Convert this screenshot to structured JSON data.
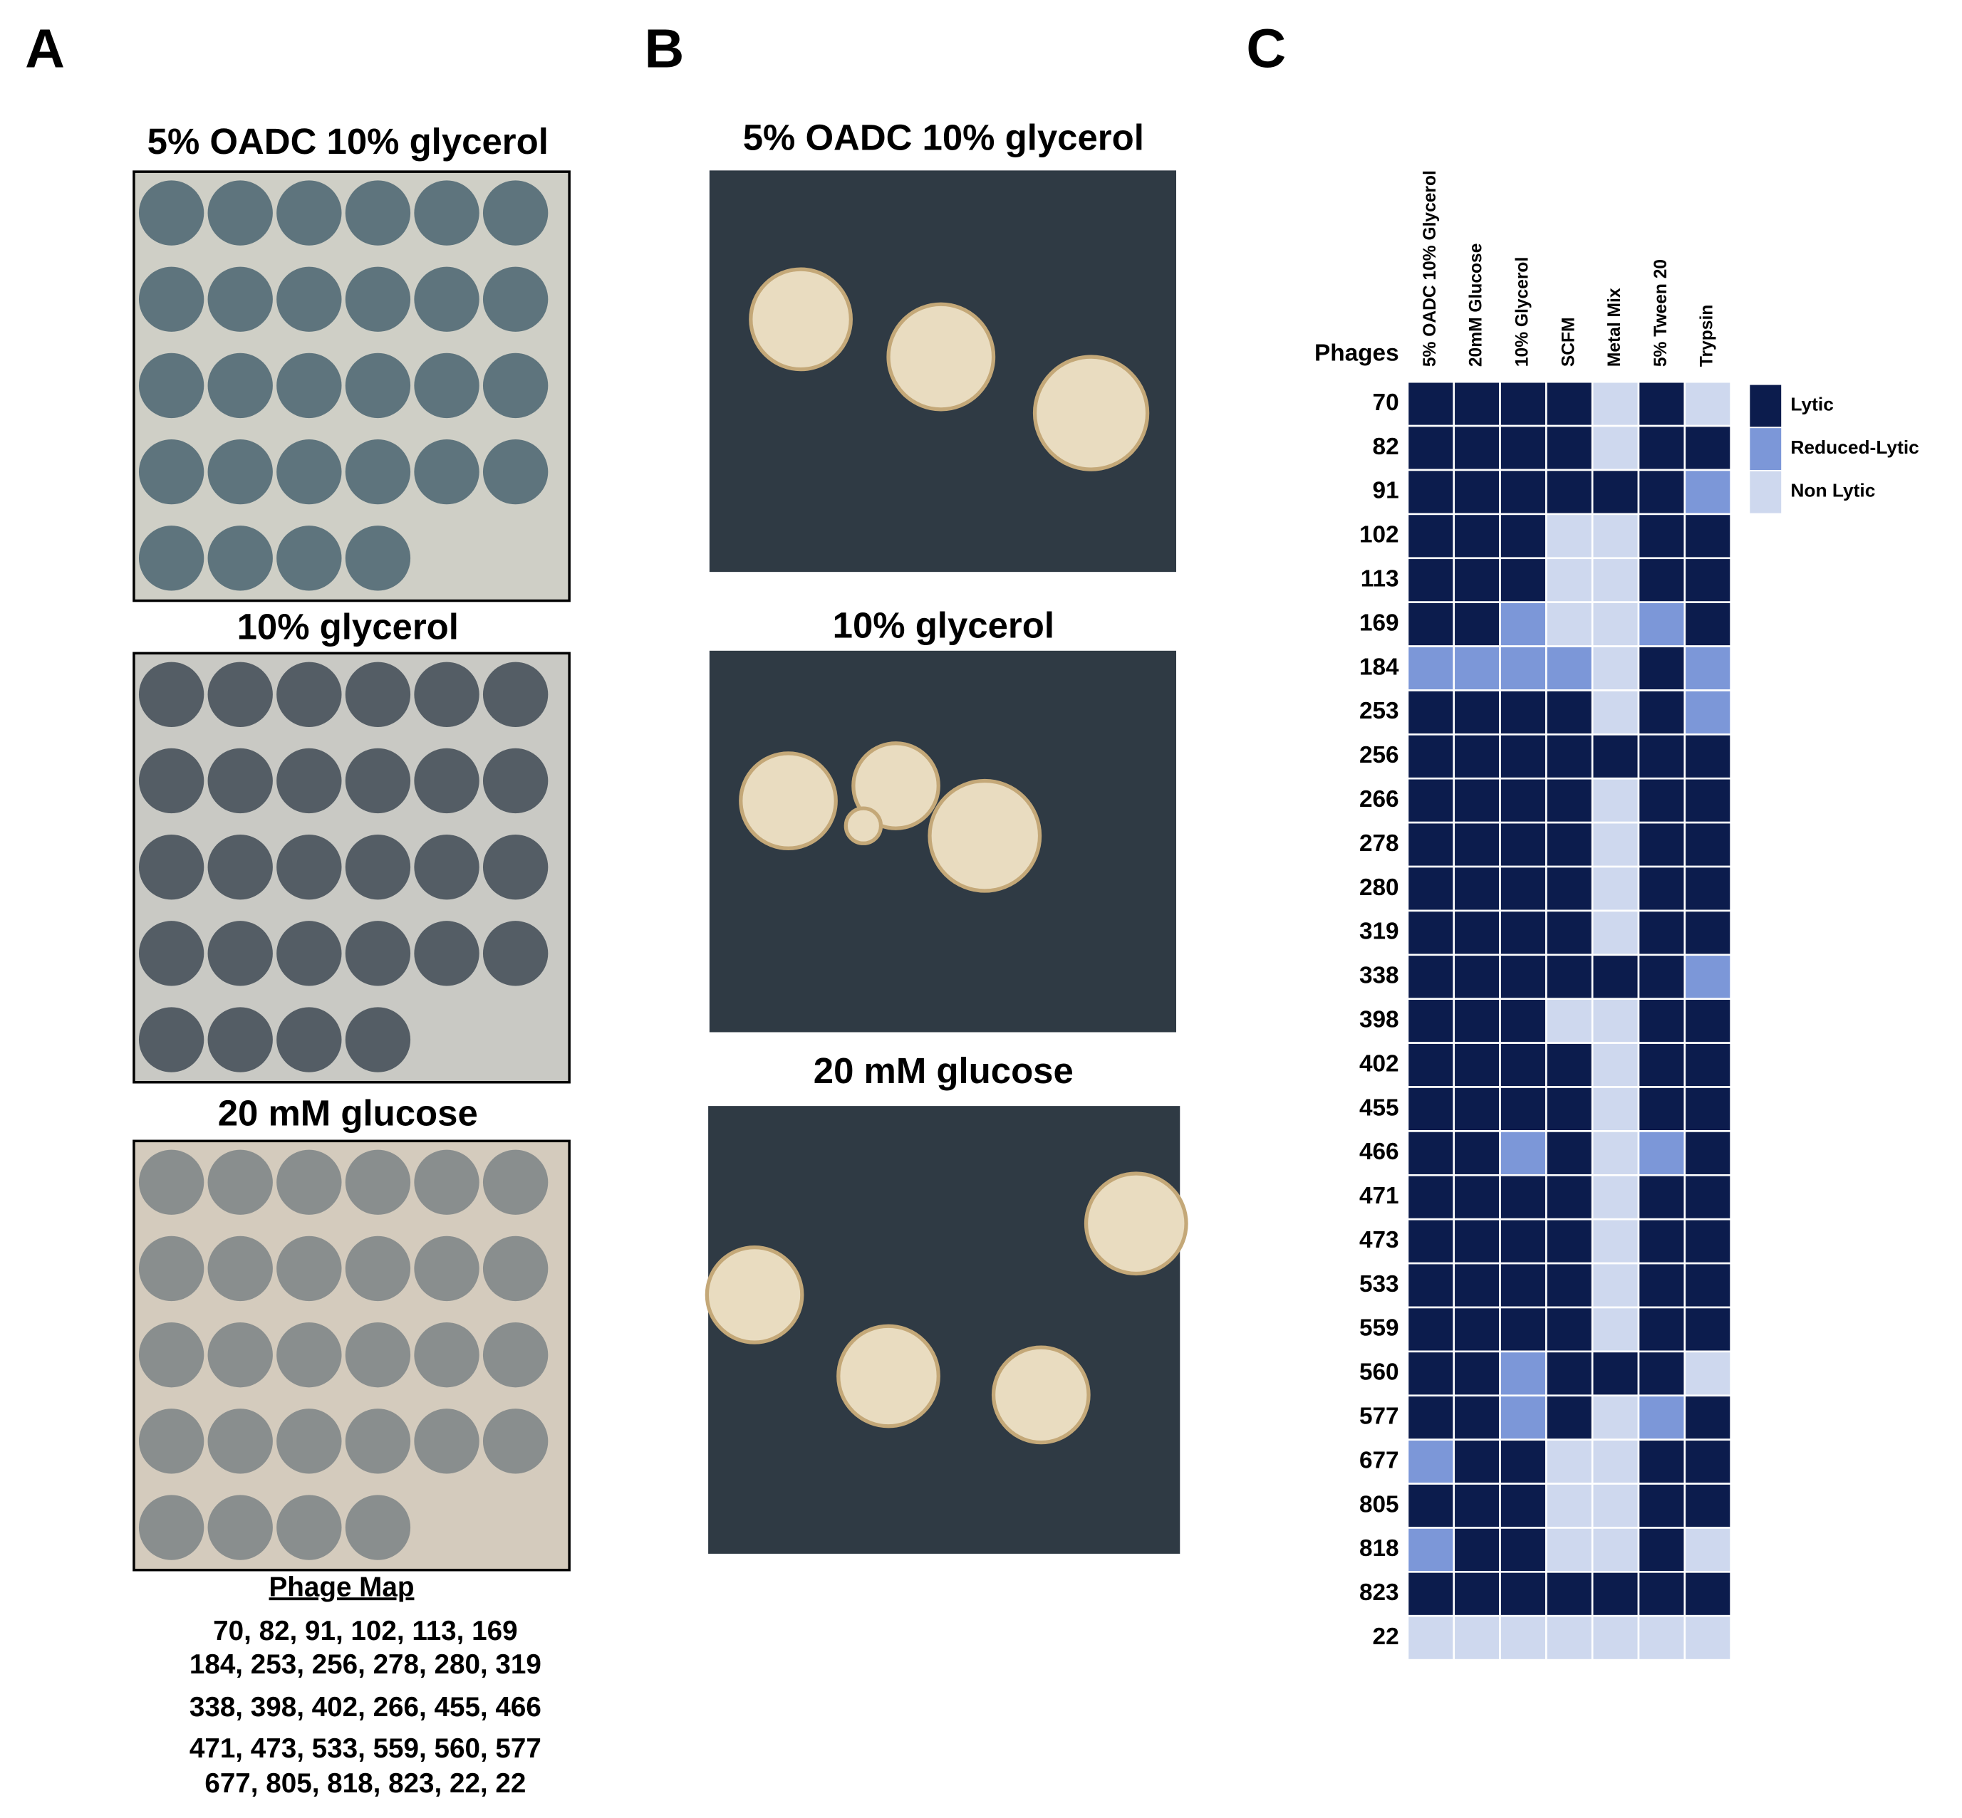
{
  "panel_a": {
    "letter": "A",
    "plates": [
      {
        "title": "5% OADC 10% glycerol"
      },
      {
        "title": "10% glycerol"
      },
      {
        "title": "20 mM glucose"
      }
    ],
    "map_title": "Phage Map",
    "map_lines": [
      "70,  82, 91, 102, 113, 169",
      "184, 253, 256, 278, 280, 319",
      "338, 398, 402, 266, 455, 466",
      "471, 473, 533, 559, 560, 577",
      "677, 805, 818, 823, 22, 22"
    ]
  },
  "panel_b": {
    "letter": "B",
    "photos": [
      {
        "title": "5% OADC 10% glycerol"
      },
      {
        "title": "10% glycerol"
      },
      {
        "title": "20 mM glucose"
      }
    ]
  },
  "panel_c": {
    "letter": "C",
    "row_header": "Phages",
    "columns": [
      "5% OADC 10% Glycerol",
      "20mM Glucose",
      "10% Glycerol",
      "SCFM",
      "Metal Mix",
      "5% Tween 20",
      "Trypsin"
    ],
    "legend": [
      {
        "label": "Lytic",
        "color": "#0c1c4d"
      },
      {
        "label": "Reduced-Lytic",
        "color": "#7c97d8"
      },
      {
        "label": "Non Lytic",
        "color": "#ced8ee"
      }
    ],
    "rows": [
      "70",
      "82",
      "91",
      "102",
      "113",
      "169",
      "184",
      "253",
      "256",
      "266",
      "278",
      "280",
      "319",
      "338",
      "398",
      "402",
      "455",
      "466",
      "471",
      "473",
      "533",
      "559",
      "560",
      "577",
      "677",
      "805",
      "818",
      "823",
      "22"
    ],
    "cells": [
      [
        "Lytic",
        "Lytic",
        "Lytic",
        "Lytic",
        "Non Lytic",
        "Lytic",
        "Non Lytic"
      ],
      [
        "Lytic",
        "Lytic",
        "Lytic",
        "Lytic",
        "Non Lytic",
        "Lytic",
        "Lytic"
      ],
      [
        "Lytic",
        "Lytic",
        "Lytic",
        "Lytic",
        "Lytic",
        "Lytic",
        "Reduced-Lytic"
      ],
      [
        "Lytic",
        "Lytic",
        "Lytic",
        "Non Lytic",
        "Non Lytic",
        "Lytic",
        "Lytic"
      ],
      [
        "Lytic",
        "Lytic",
        "Lytic",
        "Non Lytic",
        "Non Lytic",
        "Lytic",
        "Lytic"
      ],
      [
        "Lytic",
        "Lytic",
        "Reduced-Lytic",
        "Non Lytic",
        "Non Lytic",
        "Reduced-Lytic",
        "Lytic"
      ],
      [
        "Reduced-Lytic",
        "Reduced-Lytic",
        "Reduced-Lytic",
        "Reduced-Lytic",
        "Non Lytic",
        "Lytic",
        "Reduced-Lytic"
      ],
      [
        "Lytic",
        "Lytic",
        "Lytic",
        "Lytic",
        "Non Lytic",
        "Lytic",
        "Reduced-Lytic"
      ],
      [
        "Lytic",
        "Lytic",
        "Lytic",
        "Lytic",
        "Lytic",
        "Lytic",
        "Lytic"
      ],
      [
        "Lytic",
        "Lytic",
        "Lytic",
        "Lytic",
        "Non Lytic",
        "Lytic",
        "Lytic"
      ],
      [
        "Lytic",
        "Lytic",
        "Lytic",
        "Lytic",
        "Non Lytic",
        "Lytic",
        "Lytic"
      ],
      [
        "Lytic",
        "Lytic",
        "Lytic",
        "Lytic",
        "Non Lytic",
        "Lytic",
        "Lytic"
      ],
      [
        "Lytic",
        "Lytic",
        "Lytic",
        "Lytic",
        "Non Lytic",
        "Lytic",
        "Lytic"
      ],
      [
        "Lytic",
        "Lytic",
        "Lytic",
        "Lytic",
        "Lytic",
        "Lytic",
        "Reduced-Lytic"
      ],
      [
        "Lytic",
        "Lytic",
        "Lytic",
        "Non Lytic",
        "Non Lytic",
        "Lytic",
        "Lytic"
      ],
      [
        "Lytic",
        "Lytic",
        "Lytic",
        "Lytic",
        "Non Lytic",
        "Lytic",
        "Lytic"
      ],
      [
        "Lytic",
        "Lytic",
        "Lytic",
        "Lytic",
        "Non Lytic",
        "Lytic",
        "Lytic"
      ],
      [
        "Lytic",
        "Lytic",
        "Reduced-Lytic",
        "Lytic",
        "Non Lytic",
        "Reduced-Lytic",
        "Lytic"
      ],
      [
        "Lytic",
        "Lytic",
        "Lytic",
        "Lytic",
        "Non Lytic",
        "Lytic",
        "Lytic"
      ],
      [
        "Lytic",
        "Lytic",
        "Lytic",
        "Lytic",
        "Non Lytic",
        "Lytic",
        "Lytic"
      ],
      [
        "Lytic",
        "Lytic",
        "Lytic",
        "Lytic",
        "Non Lytic",
        "Lytic",
        "Lytic"
      ],
      [
        "Lytic",
        "Lytic",
        "Lytic",
        "Lytic",
        "Non Lytic",
        "Lytic",
        "Lytic"
      ],
      [
        "Lytic",
        "Lytic",
        "Reduced-Lytic",
        "Lytic",
        "Lytic",
        "Lytic",
        "Non Lytic"
      ],
      [
        "Lytic",
        "Lytic",
        "Reduced-Lytic",
        "Lytic",
        "Non Lytic",
        "Reduced-Lytic",
        "Lytic"
      ],
      [
        "Reduced-Lytic",
        "Lytic",
        "Lytic",
        "Non Lytic",
        "Non Lytic",
        "Lytic",
        "Lytic"
      ],
      [
        "Lytic",
        "Lytic",
        "Lytic",
        "Non Lytic",
        "Non Lytic",
        "Lytic",
        "Lytic"
      ],
      [
        "Reduced-Lytic",
        "Lytic",
        "Lytic",
        "Non Lytic",
        "Non Lytic",
        "Lytic",
        "Non Lytic"
      ],
      [
        "Lytic",
        "Lytic",
        "Lytic",
        "Lytic",
        "Lytic",
        "Lytic",
        "Lytic"
      ],
      [
        "Non Lytic",
        "Non Lytic",
        "Non Lytic",
        "Non Lytic",
        "Non Lytic",
        "Non Lytic",
        "Non Lytic"
      ]
    ]
  }
}
